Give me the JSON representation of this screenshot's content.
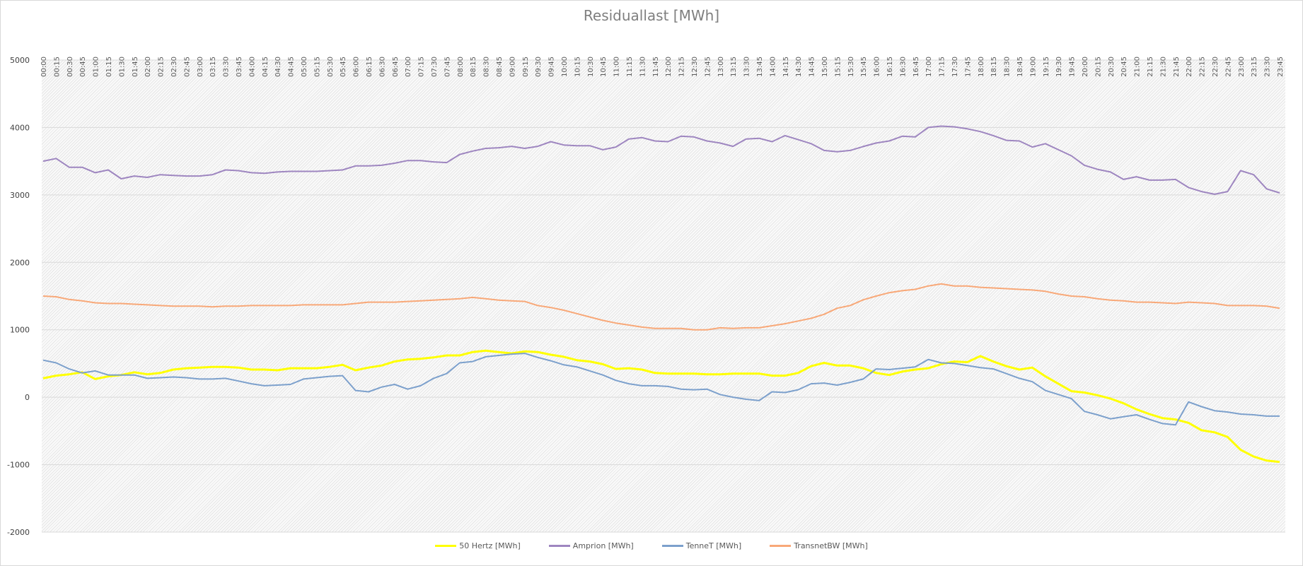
{
  "chart_data": {
    "type": "line",
    "title": "Residuallast [MWh]",
    "xlabel": "",
    "ylabel": "",
    "ylim": [
      -2000,
      5000
    ],
    "yticks": [
      5000,
      4000,
      3000,
      2000,
      1000,
      0,
      -1000,
      -2000
    ],
    "grid": true,
    "legend_position": "bottom",
    "x": [
      "00:00",
      "00:15",
      "00:30",
      "00:45",
      "01:00",
      "01:15",
      "01:30",
      "01:45",
      "02:00",
      "02:15",
      "02:30",
      "02:45",
      "03:00",
      "03:15",
      "03:30",
      "03:45",
      "04:00",
      "04:15",
      "04:30",
      "04:45",
      "05:00",
      "05:15",
      "05:30",
      "05:45",
      "06:00",
      "06:15",
      "06:30",
      "06:45",
      "07:00",
      "07:15",
      "07:30",
      "07:45",
      "08:00",
      "08:15",
      "08:30",
      "08:45",
      "09:00",
      "09:15",
      "09:30",
      "09:45",
      "10:00",
      "10:15",
      "10:30",
      "10:45",
      "11:00",
      "11:15",
      "11:30",
      "11:45",
      "12:00",
      "12:15",
      "12:30",
      "12:45",
      "13:00",
      "13:15",
      "13:30",
      "13:45",
      "14:00",
      "14:15",
      "14:30",
      "14:45",
      "15:00",
      "15:15",
      "15:30",
      "15:45",
      "16:00",
      "16:15",
      "16:30",
      "16:45",
      "17:00",
      "17:15",
      "17:30",
      "17:45",
      "18:00",
      "18:15",
      "18:30",
      "18:45",
      "19:00",
      "19:15",
      "19:30",
      "19:45",
      "20:00",
      "20:15",
      "20:30",
      "20:45",
      "21:00",
      "21:15",
      "21:30",
      "21:45",
      "22:00",
      "22:15",
      "22:30",
      "22:45",
      "23:00",
      "23:15",
      "23:30",
      "23:45"
    ],
    "series": [
      {
        "name": "50 Hertz [MWh]",
        "color": "#ffff00",
        "width": 3,
        "values": [
          280,
          320,
          340,
          370,
          270,
          310,
          330,
          370,
          340,
          360,
          410,
          430,
          440,
          450,
          450,
          440,
          410,
          410,
          400,
          430,
          430,
          430,
          450,
          480,
          400,
          440,
          470,
          530,
          560,
          570,
          590,
          620,
          620,
          670,
          690,
          670,
          650,
          680,
          670,
          630,
          600,
          550,
          530,
          490,
          420,
          430,
          410,
          360,
          350,
          350,
          350,
          340,
          340,
          350,
          350,
          350,
          320,
          320,
          360,
          460,
          510,
          470,
          470,
          430,
          360,
          330,
          380,
          410,
          430,
          490,
          530,
          520,
          610,
          530,
          460,
          410,
          440,
          310,
          200,
          90,
          70,
          30,
          -20,
          -90,
          -180,
          -250,
          -310,
          -330,
          -380,
          -490,
          -520,
          -590,
          -780,
          -880,
          -940,
          -960
        ]
      },
      {
        "name": "Amprion [MWh]",
        "color": "#9e86c0",
        "width": 2,
        "values": [
          3500,
          3540,
          3410,
          3410,
          3330,
          3370,
          3240,
          3280,
          3260,
          3300,
          3290,
          3280,
          3280,
          3300,
          3370,
          3360,
          3330,
          3320,
          3340,
          3350,
          3350,
          3350,
          3360,
          3370,
          3430,
          3430,
          3440,
          3470,
          3510,
          3510,
          3490,
          3480,
          3600,
          3650,
          3690,
          3700,
          3720,
          3690,
          3720,
          3790,
          3740,
          3730,
          3730,
          3670,
          3710,
          3830,
          3850,
          3800,
          3790,
          3870,
          3860,
          3800,
          3770,
          3720,
          3830,
          3840,
          3790,
          3880,
          3820,
          3760,
          3660,
          3640,
          3660,
          3717,
          3770,
          3800,
          3870,
          3860,
          4000,
          4020,
          4010,
          3980,
          3940,
          3880,
          3810,
          3800,
          3710,
          3760,
          3670,
          3580,
          3440,
          3380,
          3340,
          3230,
          3270,
          3220,
          3220,
          3230,
          3110,
          3050,
          3010,
          3050,
          3360,
          3300,
          3090,
          3030
        ]
      },
      {
        "name": "TenneT [MWh]",
        "color": "#7ca0cc",
        "width": 2,
        "values": [
          550,
          510,
          420,
          360,
          390,
          330,
          330,
          330,
          280,
          290,
          300,
          290,
          270,
          270,
          280,
          240,
          200,
          170,
          180,
          190,
          270,
          290,
          310,
          320,
          100,
          80,
          150,
          190,
          120,
          170,
          280,
          350,
          510,
          530,
          600,
          620,
          640,
          650,
          590,
          540,
          480,
          450,
          390,
          330,
          250,
          200,
          170,
          170,
          160,
          120,
          110,
          120,
          40,
          0,
          -30,
          -50,
          80,
          70,
          110,
          200,
          210,
          180,
          220,
          270,
          420,
          410,
          430,
          450,
          560,
          510,
          500,
          470,
          440,
          420,
          350,
          280,
          230,
          100,
          40,
          -20,
          -210,
          -260,
          -320,
          -290,
          -260,
          -330,
          -390,
          -410,
          -70,
          -140,
          -200,
          -220,
          -250,
          -260,
          -280,
          -280
        ]
      },
      {
        "name": "TransnetBW [MWh]",
        "color": "#f8a878",
        "width": 2,
        "values": [
          1500,
          1490,
          1450,
          1430,
          1400,
          1390,
          1390,
          1380,
          1370,
          1360,
          1350,
          1350,
          1350,
          1340,
          1350,
          1350,
          1360,
          1360,
          1360,
          1360,
          1370,
          1370,
          1370,
          1370,
          1390,
          1410,
          1410,
          1410,
          1420,
          1430,
          1440,
          1450,
          1460,
          1480,
          1460,
          1440,
          1430,
          1420,
          1360,
          1330,
          1290,
          1240,
          1190,
          1140,
          1100,
          1070,
          1040,
          1020,
          1020,
          1020,
          1000,
          1000,
          1030,
          1020,
          1030,
          1030,
          1060,
          1090,
          1130,
          1170,
          1230,
          1320,
          1360,
          1444,
          1500,
          1550,
          1580,
          1600,
          1650,
          1680,
          1650,
          1650,
          1630,
          1620,
          1610,
          1600,
          1590,
          1570,
          1530,
          1500,
          1490,
          1460,
          1440,
          1430,
          1410,
          1410,
          1400,
          1390,
          1410,
          1400,
          1390,
          1360,
          1360,
          1360,
          1350,
          1320
        ]
      }
    ]
  }
}
